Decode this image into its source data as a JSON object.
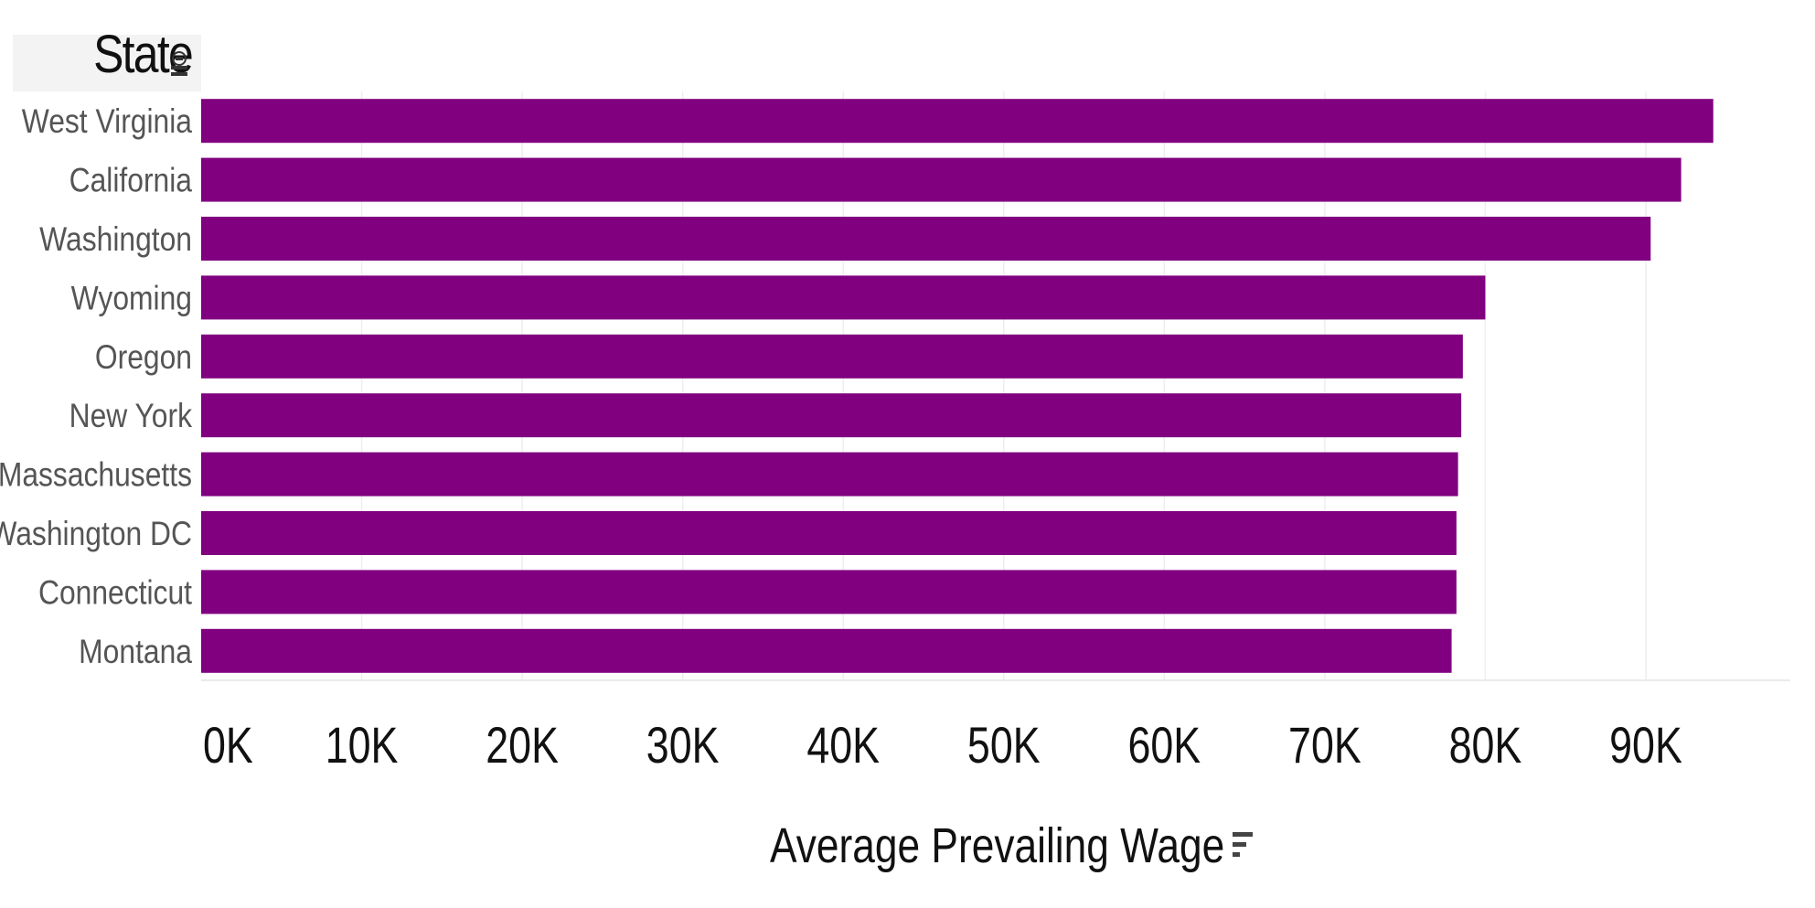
{
  "chart_data": {
    "type": "bar",
    "orientation": "horizontal",
    "row_header": "State",
    "xlabel": "Average Prevailing Wage",
    "ylabel": "State",
    "categories": [
      "West Virginia",
      "California",
      "Washington",
      "Wyoming",
      "Oregon",
      "New York",
      "Massachusetts",
      "Washington DC",
      "Connecticut",
      "Montana"
    ],
    "values": [
      94200,
      92200,
      90300,
      80000,
      78600,
      78500,
      78300,
      78200,
      78200,
      77900
    ],
    "xlim": [
      0,
      99000
    ],
    "x_ticks": [
      0,
      10000,
      20000,
      30000,
      40000,
      50000,
      60000,
      70000,
      80000,
      90000
    ],
    "x_tick_labels": [
      "0K",
      "10K",
      "20K",
      "30K",
      "40K",
      "50K",
      "60K",
      "70K",
      "80K",
      "90K"
    ],
    "bar_color": "#800080",
    "grid": true,
    "legend": "none"
  },
  "icons": {
    "header_sort": "sort-icon",
    "axis_sort": "sort-descending-icon"
  }
}
